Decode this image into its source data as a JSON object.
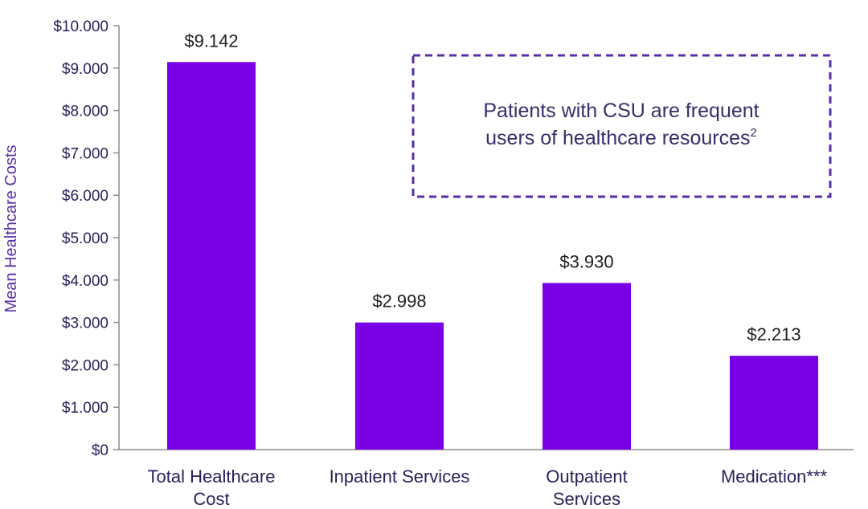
{
  "chart_data": {
    "type": "bar",
    "ylabel": "Mean Healthcare Costs",
    "ylim": [
      0,
      10000
    ],
    "yticks": [
      0,
      1000,
      2000,
      3000,
      4000,
      5000,
      6000,
      7000,
      8000,
      9000,
      10000
    ],
    "ytick_labels": [
      "$0",
      "$1.000",
      "$2.000",
      "$3.000",
      "$4.000",
      "$5.000",
      "$6.000",
      "$7.000",
      "$8.000",
      "$9.000",
      "$10.000"
    ],
    "categories": [
      [
        "Total Healthcare",
        "Cost"
      ],
      [
        "Inpatient Services"
      ],
      [
        "Outpatient",
        "Services"
      ],
      [
        "Medication***"
      ]
    ],
    "values": [
      9142,
      2998,
      3930,
      2213
    ],
    "value_labels": [
      "$9.142",
      "$2.998",
      "$3.930",
      "$2.213"
    ],
    "bar_color": "#7a00e6",
    "grid": false,
    "annotation": {
      "lines": [
        "Patients with CSU are frequent",
        "users of healthcare resources"
      ],
      "superscript": "2",
      "border_color": "#5a2ea6"
    }
  }
}
